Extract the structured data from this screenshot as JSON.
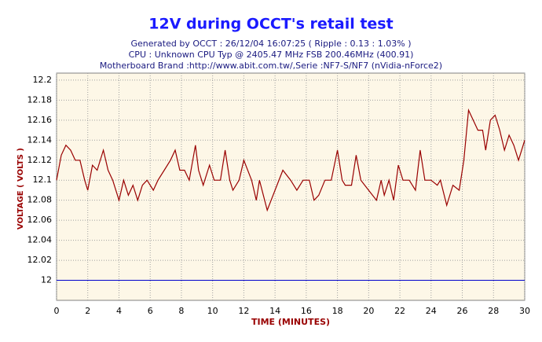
{
  "chart_data": {
    "type": "line",
    "title": "12V during OCCT's retail test",
    "subtitle": [
      "Generated by OCCT : 26/12/04 16:07:25 ( Ripple : 0.13 : 1.03% )",
      "CPU : Unknown CPU Typ @ 2405.47 MHz FSB 200.46MHz (400.91)",
      "Motherboard Brand :http://www.abit.com.tw/,Serie :NF7-S/NF7 (nVidia-nForce2)"
    ],
    "xlabel": "TIME (MINUTES)",
    "ylabel": "VOLTAGE ( VOLTS )",
    "x": [
      0,
      0.3,
      0.6,
      0.9,
      1.2,
      1.5,
      1.8,
      2.0,
      2.3,
      2.6,
      3.0,
      3.3,
      3.6,
      4.0,
      4.3,
      4.6,
      4.9,
      5.2,
      5.5,
      5.8,
      6.2,
      6.5,
      6.9,
      7.3,
      7.6,
      7.9,
      8.2,
      8.5,
      8.9,
      9.1,
      9.4,
      9.8,
      10.1,
      10.5,
      10.8,
      11.1,
      11.3,
      11.7,
      12.0,
      12.5,
      12.8,
      13.0,
      13.5,
      14.0,
      14.5,
      15.0,
      15.4,
      15.8,
      16.2,
      16.5,
      16.8,
      17.2,
      17.6,
      18.0,
      18.3,
      18.5,
      18.9,
      19.2,
      19.5,
      20.0,
      20.5,
      20.8,
      21.0,
      21.3,
      21.6,
      21.9,
      22.2,
      22.6,
      23.0,
      23.3,
      23.6,
      24.0,
      24.4,
      24.6,
      25.0,
      25.4,
      25.8,
      26.1,
      26.4,
      26.7,
      27.0,
      27.3,
      27.5,
      27.8,
      28.1,
      28.4,
      28.7,
      29.0,
      29.3,
      29.6,
      30.0
    ],
    "series": [
      {
        "color": "#990000",
        "values": [
          12.1,
          12.125,
          12.135,
          12.13,
          12.12,
          12.12,
          12.1,
          12.09,
          12.115,
          12.11,
          12.13,
          12.11,
          12.1,
          12.08,
          12.1,
          12.085,
          12.095,
          12.08,
          12.095,
          12.1,
          12.09,
          12.1,
          12.11,
          12.12,
          12.13,
          12.11,
          12.11,
          12.1,
          12.135,
          12.11,
          12.095,
          12.115,
          12.1,
          12.1,
          12.13,
          12.1,
          12.09,
          12.1,
          12.12,
          12.1,
          12.08,
          12.1,
          12.07,
          12.09,
          12.11,
          12.1,
          12.09,
          12.1,
          12.1,
          12.08,
          12.085,
          12.1,
          12.1,
          12.13,
          12.1,
          12.095,
          12.095,
          12.125,
          12.1,
          12.09,
          12.08,
          12.1,
          12.085,
          12.1,
          12.08,
          12.115,
          12.1,
          12.1,
          12.09,
          12.13,
          12.1,
          12.1,
          12.095,
          12.1,
          12.075,
          12.095,
          12.09,
          12.12,
          12.17,
          12.16,
          12.15,
          12.15,
          12.13,
          12.16,
          12.165,
          12.15,
          12.13,
          12.145,
          12.135,
          12.12,
          12.14
        ]
      }
    ],
    "reference_line": {
      "value": 12,
      "color": "#0000cc"
    },
    "xlim": [
      0,
      30
    ],
    "xticks": [
      0,
      2,
      4,
      6,
      8,
      10,
      12,
      14,
      16,
      18,
      20,
      22,
      24,
      26,
      28,
      30
    ],
    "ylim": [
      11.98,
      12.207
    ],
    "yticks": [
      12,
      12.02,
      12.04,
      12.06,
      12.08,
      12.1,
      12.12,
      12.14,
      12.16,
      12.18,
      12.2
    ],
    "grid": true
  }
}
